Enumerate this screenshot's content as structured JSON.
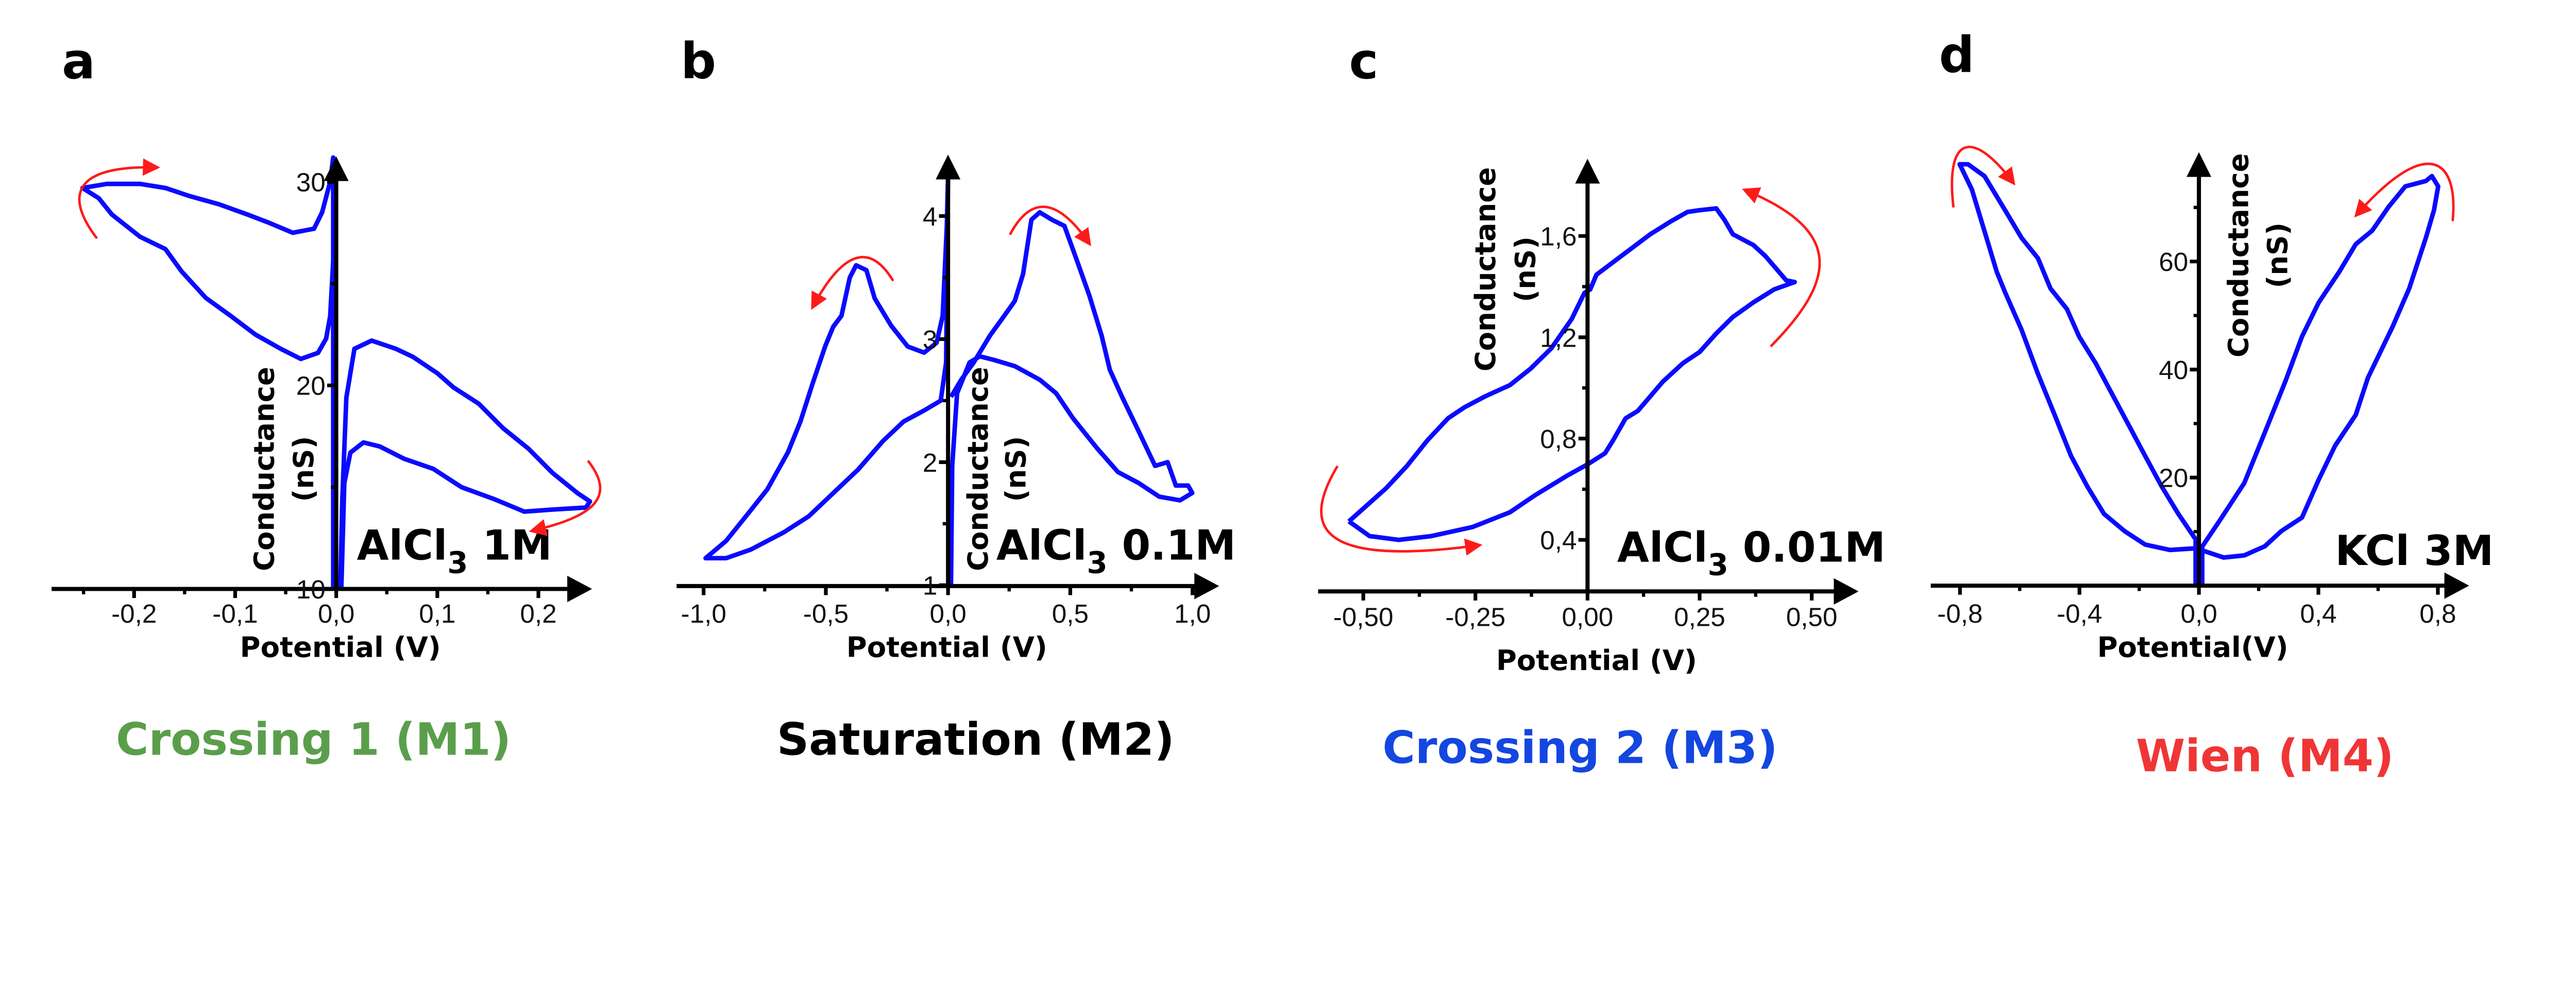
{
  "figure": {
    "curve_color": "#0a0aff",
    "arrow_color": "#ff1a1a"
  },
  "chart_data": [
    {
      "type": "line",
      "letter": "a",
      "title": {
        "formula": "AlCl",
        "subscript": "3",
        "conc": " 1M"
      },
      "xlabel": "Potential (V)",
      "ylabel": [
        "Conductance",
        "(nS)"
      ],
      "caption": "Crossing 1 (M1)",
      "caption_color": "#5a9e4b",
      "xlim": [
        -0.28,
        0.25
      ],
      "ylim": [
        10,
        31.5
      ],
      "xticks": [
        {
          "v": -0.2,
          "t": "-0,2"
        },
        {
          "v": -0.1,
          "t": "-0,1"
        },
        {
          "v": 0,
          "t": "0,0"
        },
        {
          "v": 0.1,
          "t": "0,1"
        },
        {
          "v": 0.2,
          "t": "0,2"
        }
      ],
      "xminor": [
        -0.25,
        -0.15,
        -0.05,
        0.05,
        0.15
      ],
      "yticks": [
        {
          "v": 10,
          "t": "10"
        },
        {
          "v": 20,
          "t": "20"
        },
        {
          "v": 30,
          "t": "30"
        }
      ],
      "yminor": [
        15,
        25
      ],
      "series": [
        {
          "x": [
            -0.003,
            -0.006,
            -0.014,
            -0.022,
            -0.043,
            -0.067,
            -0.088,
            -0.116,
            -0.145,
            -0.169,
            -0.194,
            -0.227,
            -0.251,
            -0.235,
            -0.222,
            -0.194,
            -0.169,
            -0.153,
            -0.129,
            -0.104,
            -0.08,
            -0.055,
            -0.035,
            -0.018,
            -0.01,
            -0.006,
            -0.003,
            -0.003,
            -0.003
          ],
          "y": [
            31.2,
            30.0,
            28.5,
            27.7,
            27.5,
            28.0,
            28.4,
            28.9,
            29.3,
            29.7,
            29.9,
            29.9,
            29.7,
            29.2,
            28.4,
            27.3,
            26.7,
            25.6,
            24.3,
            23.4,
            22.5,
            21.8,
            21.3,
            21.6,
            22.3,
            23.4,
            26.1,
            31.2,
            10
          ]
        },
        {
          "x": [
            0.004,
            0.006,
            0.01,
            0.018,
            0.035,
            0.059,
            0.076,
            0.1,
            0.116,
            0.141,
            0.165,
            0.19,
            0.214,
            0.239,
            0.251,
            0.247,
            0.214,
            0.186,
            0.157,
            0.124,
            0.096,
            0.067,
            0.043,
            0.027,
            0.014,
            0.008,
            0.005
          ],
          "y": [
            10,
            14.4,
            19.4,
            21.8,
            22.2,
            21.8,
            21.4,
            20.6,
            19.9,
            19.1,
            17.9,
            16.9,
            15.7,
            14.7,
            14.3,
            14.0,
            13.9,
            13.8,
            14.4,
            15.0,
            15.9,
            16.4,
            17.0,
            17.2,
            16.7,
            15.2,
            10
          ]
        }
      ]
    },
    {
      "type": "line",
      "letter": "b",
      "title": {
        "formula": "AlCl",
        "subscript": "3",
        "conc": " 0.1M"
      },
      "xlabel": "Potential (V)",
      "ylabel": [
        "Conductance",
        "(nS)"
      ],
      "caption": "Saturation (M2)",
      "caption_color": "#000000",
      "xlim": [
        -1.1,
        1.1
      ],
      "ylim": [
        1,
        4.5
      ],
      "xticks": [
        {
          "v": -1,
          "t": "-1,0"
        },
        {
          "v": -0.5,
          "t": "-0,5"
        },
        {
          "v": 0,
          "t": "0,0"
        },
        {
          "v": 0.5,
          "t": "0,5"
        },
        {
          "v": 1,
          "t": "1,0"
        }
      ],
      "xminor": [
        -0.75,
        -0.25,
        0.25,
        0.75
      ],
      "yticks": [
        {
          "v": 1,
          "t": "1"
        },
        {
          "v": 2,
          "t": "2"
        },
        {
          "v": 3,
          "t": "3"
        },
        {
          "v": 4,
          "t": "4"
        }
      ],
      "yminor": [
        1.5,
        2.5,
        3.5
      ],
      "series": [
        {
          "x": [
            0,
            -0.005,
            -0.022,
            -0.047,
            -0.098,
            -0.165,
            -0.233,
            -0.3,
            -0.334,
            -0.376,
            -0.402,
            -0.436,
            -0.47,
            -0.503,
            -0.554,
            -0.604,
            -0.655,
            -0.739,
            -0.807,
            -0.908,
            -0.992,
            -0.908,
            -0.807,
            -0.672,
            -0.57,
            -0.469,
            -0.368,
            -0.267,
            -0.182,
            -0.098,
            -0.03,
            -0.008,
            0
          ],
          "y": [
            4.33,
            3.92,
            3.19,
            2.97,
            2.89,
            2.94,
            3.11,
            3.33,
            3.56,
            3.6,
            3.5,
            3.19,
            3.1,
            2.94,
            2.64,
            2.33,
            2.08,
            1.78,
            1.61,
            1.36,
            1.22,
            1.22,
            1.29,
            1.43,
            1.56,
            1.75,
            1.94,
            2.17,
            2.33,
            2.42,
            2.5,
            2.81,
            4.33
          ]
        },
        {
          "x": [
            0.012,
            0.017,
            0.037,
            0.088,
            0.13,
            0.189,
            0.273,
            0.375,
            0.442,
            0.51,
            0.611,
            0.695,
            0.78,
            0.864,
            0.949,
            0.999,
            0.982,
            0.932,
            0.898,
            0.847,
            0.78,
            0.712,
            0.662,
            0.628,
            0.577,
            0.527,
            0.476,
            0.425,
            0.375,
            0.341,
            0.307,
            0.273,
            0.223,
            0.172,
            0.105,
            0.054,
            0.012
          ],
          "y": [
            1.0,
            1.97,
            2.56,
            2.81,
            2.86,
            2.83,
            2.78,
            2.67,
            2.56,
            2.36,
            2.11,
            1.92,
            1.83,
            1.72,
            1.69,
            1.75,
            1.81,
            1.81,
            2.0,
            1.97,
            2.25,
            2.53,
            2.75,
            3.03,
            3.36,
            3.64,
            3.92,
            3.97,
            4.03,
            3.97,
            3.53,
            3.31,
            3.17,
            3.03,
            2.81,
            2.67,
            2.53
          ]
        }
      ]
    },
    {
      "type": "line",
      "letter": "c",
      "title": {
        "formula": "AlCl",
        "subscript": "3",
        "conc": " 0.01M"
      },
      "xlabel": "Potential (V)",
      "ylabel": [
        "Conductance",
        "(nS)"
      ],
      "caption": "Crossing 2 (M3)",
      "caption_color": "#1446e0",
      "xlim": [
        -0.6,
        0.6
      ],
      "ylim": [
        0.2,
        1.95
      ],
      "xticks": [
        {
          "v": -0.5,
          "t": "-0,50"
        },
        {
          "v": -0.25,
          "t": "-0,25"
        },
        {
          "v": 0,
          "t": "0,00"
        },
        {
          "v": 0.25,
          "t": "0,25"
        },
        {
          "v": 0.5,
          "t": "0,50"
        }
      ],
      "xminor": [
        -0.375,
        -0.125,
        0.125,
        0.375
      ],
      "yticks": [
        {
          "v": 0.4,
          "t": "0,4"
        },
        {
          "v": 0.8,
          "t": "0,8"
        },
        {
          "v": 1.2,
          "t": "1,2"
        },
        {
          "v": 1.6,
          "t": "1,6"
        }
      ],
      "yminor": [
        0.6,
        1.0,
        1.4
      ],
      "series": [
        {
          "x": [
            -0.532,
            -0.486,
            -0.421,
            -0.348,
            -0.256,
            -0.173,
            -0.118,
            -0.044,
            0,
            0.039,
            0.057,
            0.085,
            0.112,
            0.14,
            0.168,
            0.213,
            0.25,
            0.287,
            0.324,
            0.37,
            0.416,
            0.462,
            0.443,
            0.425,
            0.397,
            0.37,
            0.324,
            0.305,
            0.287,
            0.25,
            0.223,
            0.186,
            0.14,
            0.02,
            0.006,
            -0.007,
            -0.035,
            -0.081,
            -0.127,
            -0.173,
            -0.228,
            -0.274,
            -0.311,
            -0.357,
            -0.403,
            -0.449,
            -0.532
          ],
          "y": [
            0.473,
            0.415,
            0.4,
            0.415,
            0.451,
            0.509,
            0.575,
            0.655,
            0.698,
            0.742,
            0.793,
            0.88,
            0.909,
            0.967,
            1.025,
            1.098,
            1.142,
            1.215,
            1.28,
            1.338,
            1.389,
            1.418,
            1.425,
            1.462,
            1.52,
            1.564,
            1.607,
            1.665,
            1.709,
            1.702,
            1.695,
            1.658,
            1.607,
            1.447,
            1.389,
            1.375,
            1.273,
            1.156,
            1.076,
            1.011,
            0.967,
            0.924,
            0.88,
            0.793,
            0.691,
            0.604,
            0.473
          ]
        }
      ]
    },
    {
      "type": "line",
      "letter": "d",
      "title": {
        "formula": "KCl 3M",
        "subscript": "",
        "conc": ""
      },
      "xlabel": "Potential(V)",
      "ylabel": [
        "Conductance",
        "(nS)"
      ],
      "caption": "Wien (M4)",
      "caption_color": "#f03535",
      "xlim": [
        -0.9,
        0.9
      ],
      "ylim": [
        0,
        80
      ],
      "xticks": [
        {
          "v": -0.8,
          "t": "-0,8"
        },
        {
          "v": -0.4,
          "t": "-0,4"
        },
        {
          "v": 0,
          "t": "0,0"
        },
        {
          "v": 0.4,
          "t": "0,4"
        },
        {
          "v": 0.8,
          "t": "0,8"
        }
      ],
      "xminor": [
        -0.6,
        -0.2,
        0.2,
        0.6
      ],
      "yticks": [
        {
          "v": 20,
          "t": "20"
        },
        {
          "v": 40,
          "t": "40"
        },
        {
          "v": 60,
          "t": "60"
        }
      ],
      "yminor": [
        10,
        30,
        50,
        70
      ],
      "series": [
        {
          "x": [
            -0.003,
            -0.014,
            -0.097,
            -0.18,
            -0.249,
            -0.318,
            -0.373,
            -0.428,
            -0.483,
            -0.539,
            -0.594,
            -0.649,
            -0.677,
            -0.732,
            -0.76,
            -0.801,
            -0.773,
            -0.718,
            -0.649,
            -0.594,
            -0.539,
            -0.497,
            -0.442,
            -0.401,
            -0.345,
            -0.29,
            -0.235,
            -0.18,
            -0.124,
            -0.069,
            -0.014,
            -0.003,
            -0.011,
            -0.011
          ],
          "y": [
            8.2,
            6.9,
            6.6,
            7.6,
            10.1,
            13.3,
            18.3,
            24.0,
            31.6,
            39.2,
            47.4,
            54.3,
            58.1,
            68.2,
            73.3,
            78.0,
            78.0,
            75.8,
            69.5,
            64.4,
            60.6,
            55.0,
            51.2,
            46.1,
            41.1,
            35.4,
            29.7,
            24.0,
            18.3,
            13.3,
            8.8,
            8.2,
            8.2,
            0
          ]
        },
        {
          "x": [
            0.011,
            0.011,
            0.007,
            0.069,
            0.152,
            0.221,
            0.29,
            0.345,
            0.401,
            0.47,
            0.525,
            0.58,
            0.635,
            0.691,
            0.76,
            0.78,
            0.801,
            0.787,
            0.76,
            0.704,
            0.649,
            0.566,
            0.525,
            0.456,
            0.401,
            0.345,
            0.276,
            0.221,
            0.152,
            0.083,
            0.007
          ],
          "y": [
            0,
            6.9,
            6.9,
            12.0,
            19.0,
            28.4,
            37.9,
            46.1,
            52.4,
            58.1,
            63.2,
            65.7,
            70.1,
            73.9,
            74.9,
            75.8,
            73.9,
            69.5,
            64.4,
            55.0,
            48.0,
            38.5,
            31.6,
            25.9,
            19.6,
            12.6,
            10.1,
            7.3,
            5.6,
            5.2,
            6.6
          ]
        }
      ]
    }
  ]
}
